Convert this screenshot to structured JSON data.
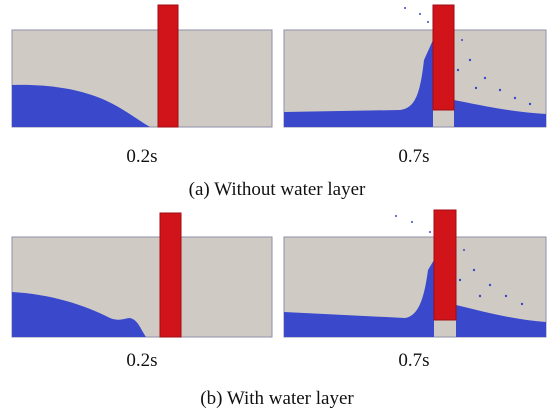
{
  "figure": {
    "rows": [
      {
        "caption": "(a) Without water layer",
        "frames": [
          {
            "time": "0.2s"
          },
          {
            "time": "0.7s"
          }
        ]
      },
      {
        "caption": "(b) With water layer",
        "frames": [
          {
            "time": "0.2s"
          },
          {
            "time": "0.7s"
          }
        ]
      }
    ]
  }
}
